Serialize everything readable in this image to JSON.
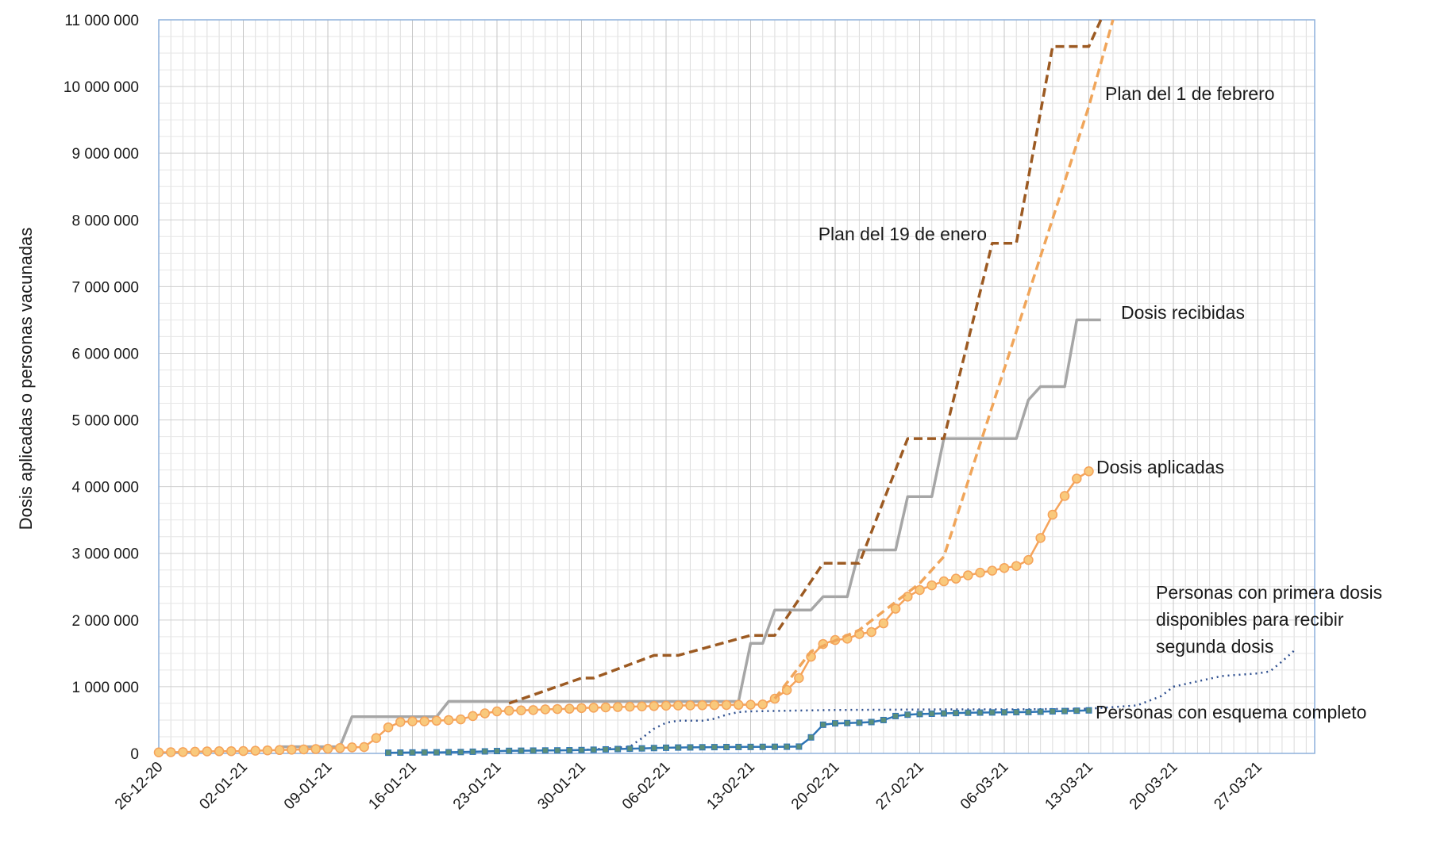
{
  "chart_data": {
    "type": "line",
    "title": "",
    "xlabel": "",
    "ylabel": "Dosis aplicadas o personas vacunadas",
    "ylim": [
      0,
      11000000
    ],
    "xlim": [
      "2020-12-26",
      "2021-03-31"
    ],
    "grid": true,
    "legend": "none (series labelled directly on the plot)",
    "yticks": [
      {
        "v": 0,
        "label": "0"
      },
      {
        "v": 1000000,
        "label": "1 000 000"
      },
      {
        "v": 2000000,
        "label": "2 000 000"
      },
      {
        "v": 3000000,
        "label": "3 000 000"
      },
      {
        "v": 4000000,
        "label": "4 000 000"
      },
      {
        "v": 5000000,
        "label": "5 000 000"
      },
      {
        "v": 6000000,
        "label": "6 000 000"
      },
      {
        "v": 7000000,
        "label": "7 000 000"
      },
      {
        "v": 8000000,
        "label": "8 000 000"
      },
      {
        "v": 9000000,
        "label": "9 000 000"
      },
      {
        "v": 10000000,
        "label": "10 000 000"
      },
      {
        "v": 11000000,
        "label": "11 000 000"
      }
    ],
    "xticks": [
      {
        "date": "2020-12-26",
        "label": "26-12-20"
      },
      {
        "date": "2021-01-02",
        "label": "02-01-21"
      },
      {
        "date": "2021-01-09",
        "label": "09-01-21"
      },
      {
        "date": "2021-01-16",
        "label": "16-01-21"
      },
      {
        "date": "2021-01-23",
        "label": "23-01-21"
      },
      {
        "date": "2021-01-30",
        "label": "30-01-21"
      },
      {
        "date": "2021-02-06",
        "label": "06-02-21"
      },
      {
        "date": "2021-02-13",
        "label": "13-02-21"
      },
      {
        "date": "2021-02-20",
        "label": "20-02-21"
      },
      {
        "date": "2021-02-27",
        "label": "27-02-21"
      },
      {
        "date": "2021-03-06",
        "label": "06-03-21"
      },
      {
        "date": "2021-03-13",
        "label": "13-03-21"
      },
      {
        "date": "2021-03-20",
        "label": "20-03-21"
      },
      {
        "date": "2021-03-27",
        "label": "27-03-21"
      }
    ],
    "series": [
      {
        "name": "Plan del 19 de enero",
        "color": "#9c5a22",
        "style": "dashed",
        "points": [
          [
            "2021-01-24",
            750000
          ],
          [
            "2021-01-30",
            1130000
          ],
          [
            "2021-01-31",
            1130000
          ],
          [
            "2021-02-05",
            1470000
          ],
          [
            "2021-02-07",
            1470000
          ],
          [
            "2021-02-13",
            1770000
          ],
          [
            "2021-02-15",
            1770000
          ],
          [
            "2021-02-19",
            2850000
          ],
          [
            "2021-02-22",
            2850000
          ],
          [
            "2021-02-26",
            4720000
          ],
          [
            "2021-03-01",
            4720000
          ],
          [
            "2021-03-05",
            7650000
          ],
          [
            "2021-03-07",
            7650000
          ],
          [
            "2021-03-10",
            10600000
          ],
          [
            "2021-03-13",
            10600000
          ],
          [
            "2021-03-14",
            11000000
          ]
        ]
      },
      {
        "name": "Plan del 1 de febrero",
        "color": "#f0a55a",
        "style": "dashed",
        "points": [
          [
            "2021-02-15",
            820000
          ],
          [
            "2021-02-18",
            1530000
          ],
          [
            "2021-02-22",
            1850000
          ],
          [
            "2021-02-27",
            2550000
          ],
          [
            "2021-03-01",
            2950000
          ],
          [
            "2021-03-13",
            9700000
          ],
          [
            "2021-03-15",
            11000000
          ]
        ]
      },
      {
        "name": "Dosis recibidas",
        "color": "#a6a6a6",
        "style": "solid",
        "points": [
          [
            "2021-01-05",
            100000
          ],
          [
            "2021-01-10",
            100000
          ],
          [
            "2021-01-11",
            550000
          ],
          [
            "2021-01-18",
            550000
          ],
          [
            "2021-01-19",
            780000
          ],
          [
            "2021-02-12",
            780000
          ],
          [
            "2021-02-13",
            1650000
          ],
          [
            "2021-02-14",
            1650000
          ],
          [
            "2021-02-15",
            2150000
          ],
          [
            "2021-02-18",
            2150000
          ],
          [
            "2021-02-19",
            2350000
          ],
          [
            "2021-02-21",
            2350000
          ],
          [
            "2021-02-22",
            3050000
          ],
          [
            "2021-02-25",
            3050000
          ],
          [
            "2021-02-26",
            3850000
          ],
          [
            "2021-02-28",
            3850000
          ],
          [
            "2021-03-01",
            4720000
          ],
          [
            "2021-03-07",
            4720000
          ],
          [
            "2021-03-08",
            5300000
          ],
          [
            "2021-03-09",
            5500000
          ],
          [
            "2021-03-11",
            5500000
          ],
          [
            "2021-03-12",
            6500000
          ],
          [
            "2021-03-14",
            6500000
          ]
        ]
      },
      {
        "name": "Dosis aplicadas",
        "color": "#f5a35a",
        "marker_fill": "#f9c97c",
        "style": "solid-markers",
        "points": [
          [
            "2020-12-26",
            15000
          ],
          [
            "2020-12-27",
            18000
          ],
          [
            "2020-12-28",
            20000
          ],
          [
            "2020-12-29",
            25000
          ],
          [
            "2020-12-30",
            30000
          ],
          [
            "2020-12-31",
            32000
          ],
          [
            "2021-01-01",
            33000
          ],
          [
            "2021-01-02",
            35000
          ],
          [
            "2021-01-03",
            40000
          ],
          [
            "2021-01-04",
            45000
          ],
          [
            "2021-01-05",
            50000
          ],
          [
            "2021-01-06",
            55000
          ],
          [
            "2021-01-07",
            60000
          ],
          [
            "2021-01-08",
            65000
          ],
          [
            "2021-01-09",
            70000
          ],
          [
            "2021-01-10",
            80000
          ],
          [
            "2021-01-11",
            90000
          ],
          [
            "2021-01-12",
            95000
          ],
          [
            "2021-01-13",
            230000
          ],
          [
            "2021-01-14",
            390000
          ],
          [
            "2021-01-15",
            470000
          ],
          [
            "2021-01-16",
            480000
          ],
          [
            "2021-01-17",
            480000
          ],
          [
            "2021-01-18",
            490000
          ],
          [
            "2021-01-19",
            500000
          ],
          [
            "2021-01-20",
            510000
          ],
          [
            "2021-01-21",
            560000
          ],
          [
            "2021-01-22",
            600000
          ],
          [
            "2021-01-23",
            630000
          ],
          [
            "2021-01-24",
            640000
          ],
          [
            "2021-01-25",
            645000
          ],
          [
            "2021-01-26",
            650000
          ],
          [
            "2021-01-27",
            660000
          ],
          [
            "2021-01-28",
            665000
          ],
          [
            "2021-01-29",
            670000
          ],
          [
            "2021-01-30",
            680000
          ],
          [
            "2021-01-31",
            685000
          ],
          [
            "2021-02-01",
            690000
          ],
          [
            "2021-02-02",
            695000
          ],
          [
            "2021-02-03",
            700000
          ],
          [
            "2021-02-04",
            705000
          ],
          [
            "2021-02-05",
            710000
          ],
          [
            "2021-02-06",
            715000
          ],
          [
            "2021-02-07",
            718000
          ],
          [
            "2021-02-08",
            720000
          ],
          [
            "2021-02-09",
            722000
          ],
          [
            "2021-02-10",
            724000
          ],
          [
            "2021-02-11",
            726000
          ],
          [
            "2021-02-12",
            728000
          ],
          [
            "2021-02-13",
            730000
          ],
          [
            "2021-02-14",
            735000
          ],
          [
            "2021-02-15",
            820000
          ],
          [
            "2021-02-16",
            950000
          ],
          [
            "2021-02-17",
            1130000
          ],
          [
            "2021-02-18",
            1450000
          ],
          [
            "2021-02-19",
            1640000
          ],
          [
            "2021-02-20",
            1700000
          ],
          [
            "2021-02-21",
            1720000
          ],
          [
            "2021-02-22",
            1790000
          ],
          [
            "2021-02-23",
            1820000
          ],
          [
            "2021-02-24",
            1950000
          ],
          [
            "2021-02-25",
            2170000
          ],
          [
            "2021-02-26",
            2350000
          ],
          [
            "2021-02-27",
            2450000
          ],
          [
            "2021-02-28",
            2520000
          ],
          [
            "2021-03-01",
            2580000
          ],
          [
            "2021-03-02",
            2620000
          ],
          [
            "2021-03-03",
            2670000
          ],
          [
            "2021-03-04",
            2710000
          ],
          [
            "2021-03-05",
            2740000
          ],
          [
            "2021-03-06",
            2780000
          ],
          [
            "2021-03-07",
            2810000
          ],
          [
            "2021-03-08",
            2900000
          ],
          [
            "2021-03-09",
            3230000
          ],
          [
            "2021-03-10",
            3580000
          ],
          [
            "2021-03-11",
            3860000
          ],
          [
            "2021-03-12",
            4120000
          ],
          [
            "2021-03-13",
            4230000
          ]
        ]
      },
      {
        "name": "Personas con primera dosis disponibles para recibir segunda dosis",
        "color": "#2e4f8f",
        "style": "dotted",
        "points": [
          [
            "2021-01-30",
            50000
          ],
          [
            "2021-02-03",
            100000
          ],
          [
            "2021-02-04",
            230000
          ],
          [
            "2021-02-05",
            370000
          ],
          [
            "2021-02-06",
            460000
          ],
          [
            "2021-02-07",
            490000
          ],
          [
            "2021-02-08",
            490000
          ],
          [
            "2021-02-09",
            490000
          ],
          [
            "2021-02-10",
            520000
          ],
          [
            "2021-02-11",
            580000
          ],
          [
            "2021-02-12",
            620000
          ],
          [
            "2021-02-13",
            630000
          ],
          [
            "2021-02-16",
            640000
          ],
          [
            "2021-02-20",
            650000
          ],
          [
            "2021-03-01",
            660000
          ],
          [
            "2021-03-07",
            660000
          ],
          [
            "2021-03-13",
            670000
          ],
          [
            "2021-03-17",
            720000
          ],
          [
            "2021-03-19",
            860000
          ],
          [
            "2021-03-20",
            1000000
          ],
          [
            "2021-03-22",
            1080000
          ],
          [
            "2021-03-24",
            1160000
          ],
          [
            "2021-03-27",
            1200000
          ],
          [
            "2021-03-28",
            1230000
          ],
          [
            "2021-03-29",
            1380000
          ],
          [
            "2021-03-30",
            1540000
          ]
        ]
      },
      {
        "name": "Personas con esquema completo",
        "color": "#2e75b6",
        "marker_fill": "#5b8f7a",
        "style": "solid-markers",
        "points": [
          [
            "2021-01-14",
            10000
          ],
          [
            "2021-01-15",
            12000
          ],
          [
            "2021-01-16",
            14000
          ],
          [
            "2021-01-17",
            15000
          ],
          [
            "2021-01-18",
            16000
          ],
          [
            "2021-01-19",
            18000
          ],
          [
            "2021-01-20",
            20000
          ],
          [
            "2021-01-21",
            25000
          ],
          [
            "2021-01-22",
            30000
          ],
          [
            "2021-01-23",
            35000
          ],
          [
            "2021-01-24",
            38000
          ],
          [
            "2021-01-25",
            40000
          ],
          [
            "2021-01-26",
            42000
          ],
          [
            "2021-01-27",
            44000
          ],
          [
            "2021-01-28",
            45000
          ],
          [
            "2021-01-29",
            47000
          ],
          [
            "2021-01-30",
            50000
          ],
          [
            "2021-01-31",
            55000
          ],
          [
            "2021-02-01",
            60000
          ],
          [
            "2021-02-02",
            65000
          ],
          [
            "2021-02-03",
            70000
          ],
          [
            "2021-02-04",
            75000
          ],
          [
            "2021-02-05",
            80000
          ],
          [
            "2021-02-06",
            85000
          ],
          [
            "2021-02-07",
            88000
          ],
          [
            "2021-02-08",
            90000
          ],
          [
            "2021-02-09",
            92000
          ],
          [
            "2021-02-10",
            94000
          ],
          [
            "2021-02-11",
            95000
          ],
          [
            "2021-02-12",
            96000
          ],
          [
            "2021-02-13",
            97000
          ],
          [
            "2021-02-14",
            98000
          ],
          [
            "2021-02-15",
            99000
          ],
          [
            "2021-02-16",
            100000
          ],
          [
            "2021-02-17",
            102000
          ],
          [
            "2021-02-18",
            240000
          ],
          [
            "2021-02-19",
            430000
          ],
          [
            "2021-02-20",
            450000
          ],
          [
            "2021-02-21",
            455000
          ],
          [
            "2021-02-22",
            460000
          ],
          [
            "2021-02-23",
            470000
          ],
          [
            "2021-02-24",
            500000
          ],
          [
            "2021-02-25",
            560000
          ],
          [
            "2021-02-26",
            580000
          ],
          [
            "2021-02-27",
            590000
          ],
          [
            "2021-02-28",
            595000
          ],
          [
            "2021-03-01",
            600000
          ],
          [
            "2021-03-02",
            605000
          ],
          [
            "2021-03-03",
            610000
          ],
          [
            "2021-03-04",
            612000
          ],
          [
            "2021-03-05",
            614000
          ],
          [
            "2021-03-06",
            616000
          ],
          [
            "2021-03-07",
            618000
          ],
          [
            "2021-03-08",
            620000
          ],
          [
            "2021-03-09",
            625000
          ],
          [
            "2021-03-10",
            630000
          ],
          [
            "2021-03-11",
            635000
          ],
          [
            "2021-03-12",
            640000
          ],
          [
            "2021-03-13",
            645000
          ]
        ]
      }
    ],
    "annotations": [
      {
        "lines": [
          "Plan del 1 de febrero"
        ]
      },
      {
        "lines": [
          "Plan del 19 de enero"
        ]
      },
      {
        "lines": [
          "Dosis recibidas"
        ]
      },
      {
        "lines": [
          "Dosis aplicadas"
        ]
      },
      {
        "lines": [
          "Personas con primera dosis",
          "disponibles para recibir",
          "segunda dosis"
        ]
      },
      {
        "lines": [
          "Personas con esquema completo"
        ]
      }
    ]
  }
}
